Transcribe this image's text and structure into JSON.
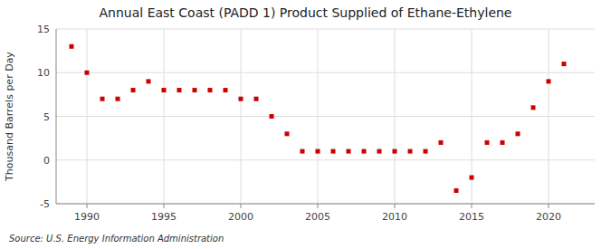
{
  "chart_data": {
    "type": "scatter",
    "title": "Annual East Coast (PADD 1) Product Supplied of Ethane-Ethylene",
    "ylabel": "Thousand Barrels per Day",
    "annotations": [
      "Source: U.S. Energy Information Administration"
    ],
    "x": [
      1989,
      1990,
      1991,
      1992,
      1993,
      1994,
      1995,
      1996,
      1997,
      1998,
      1999,
      2000,
      2001,
      2002,
      2003,
      2004,
      2005,
      2006,
      2007,
      2008,
      2009,
      2010,
      2011,
      2012,
      2013,
      2014,
      2015,
      2016,
      2017,
      2018,
      2019,
      2020,
      2021
    ],
    "values": [
      13.0,
      10.0,
      7.0,
      7.0,
      8.0,
      9.0,
      8.0,
      8.0,
      8.0,
      8.0,
      8.0,
      7.0,
      7.0,
      5.0,
      3.0,
      1.0,
      1.0,
      1.0,
      1.0,
      1.0,
      1.0,
      1.0,
      1.0,
      1.0,
      2.0,
      -3.5,
      -2.0,
      2.0,
      2.0,
      3.0,
      6.0,
      9.0,
      11.0
    ],
    "color": "#cc0000",
    "marker": "square",
    "xlim": [
      1988.0,
      2023.0
    ],
    "ylim": [
      -5,
      15
    ],
    "xticks": [
      1990,
      1995,
      2000,
      2005,
      2010,
      2015,
      2020
    ],
    "yticks": [
      -5,
      0,
      5,
      10,
      15
    ],
    "grid": true
  }
}
